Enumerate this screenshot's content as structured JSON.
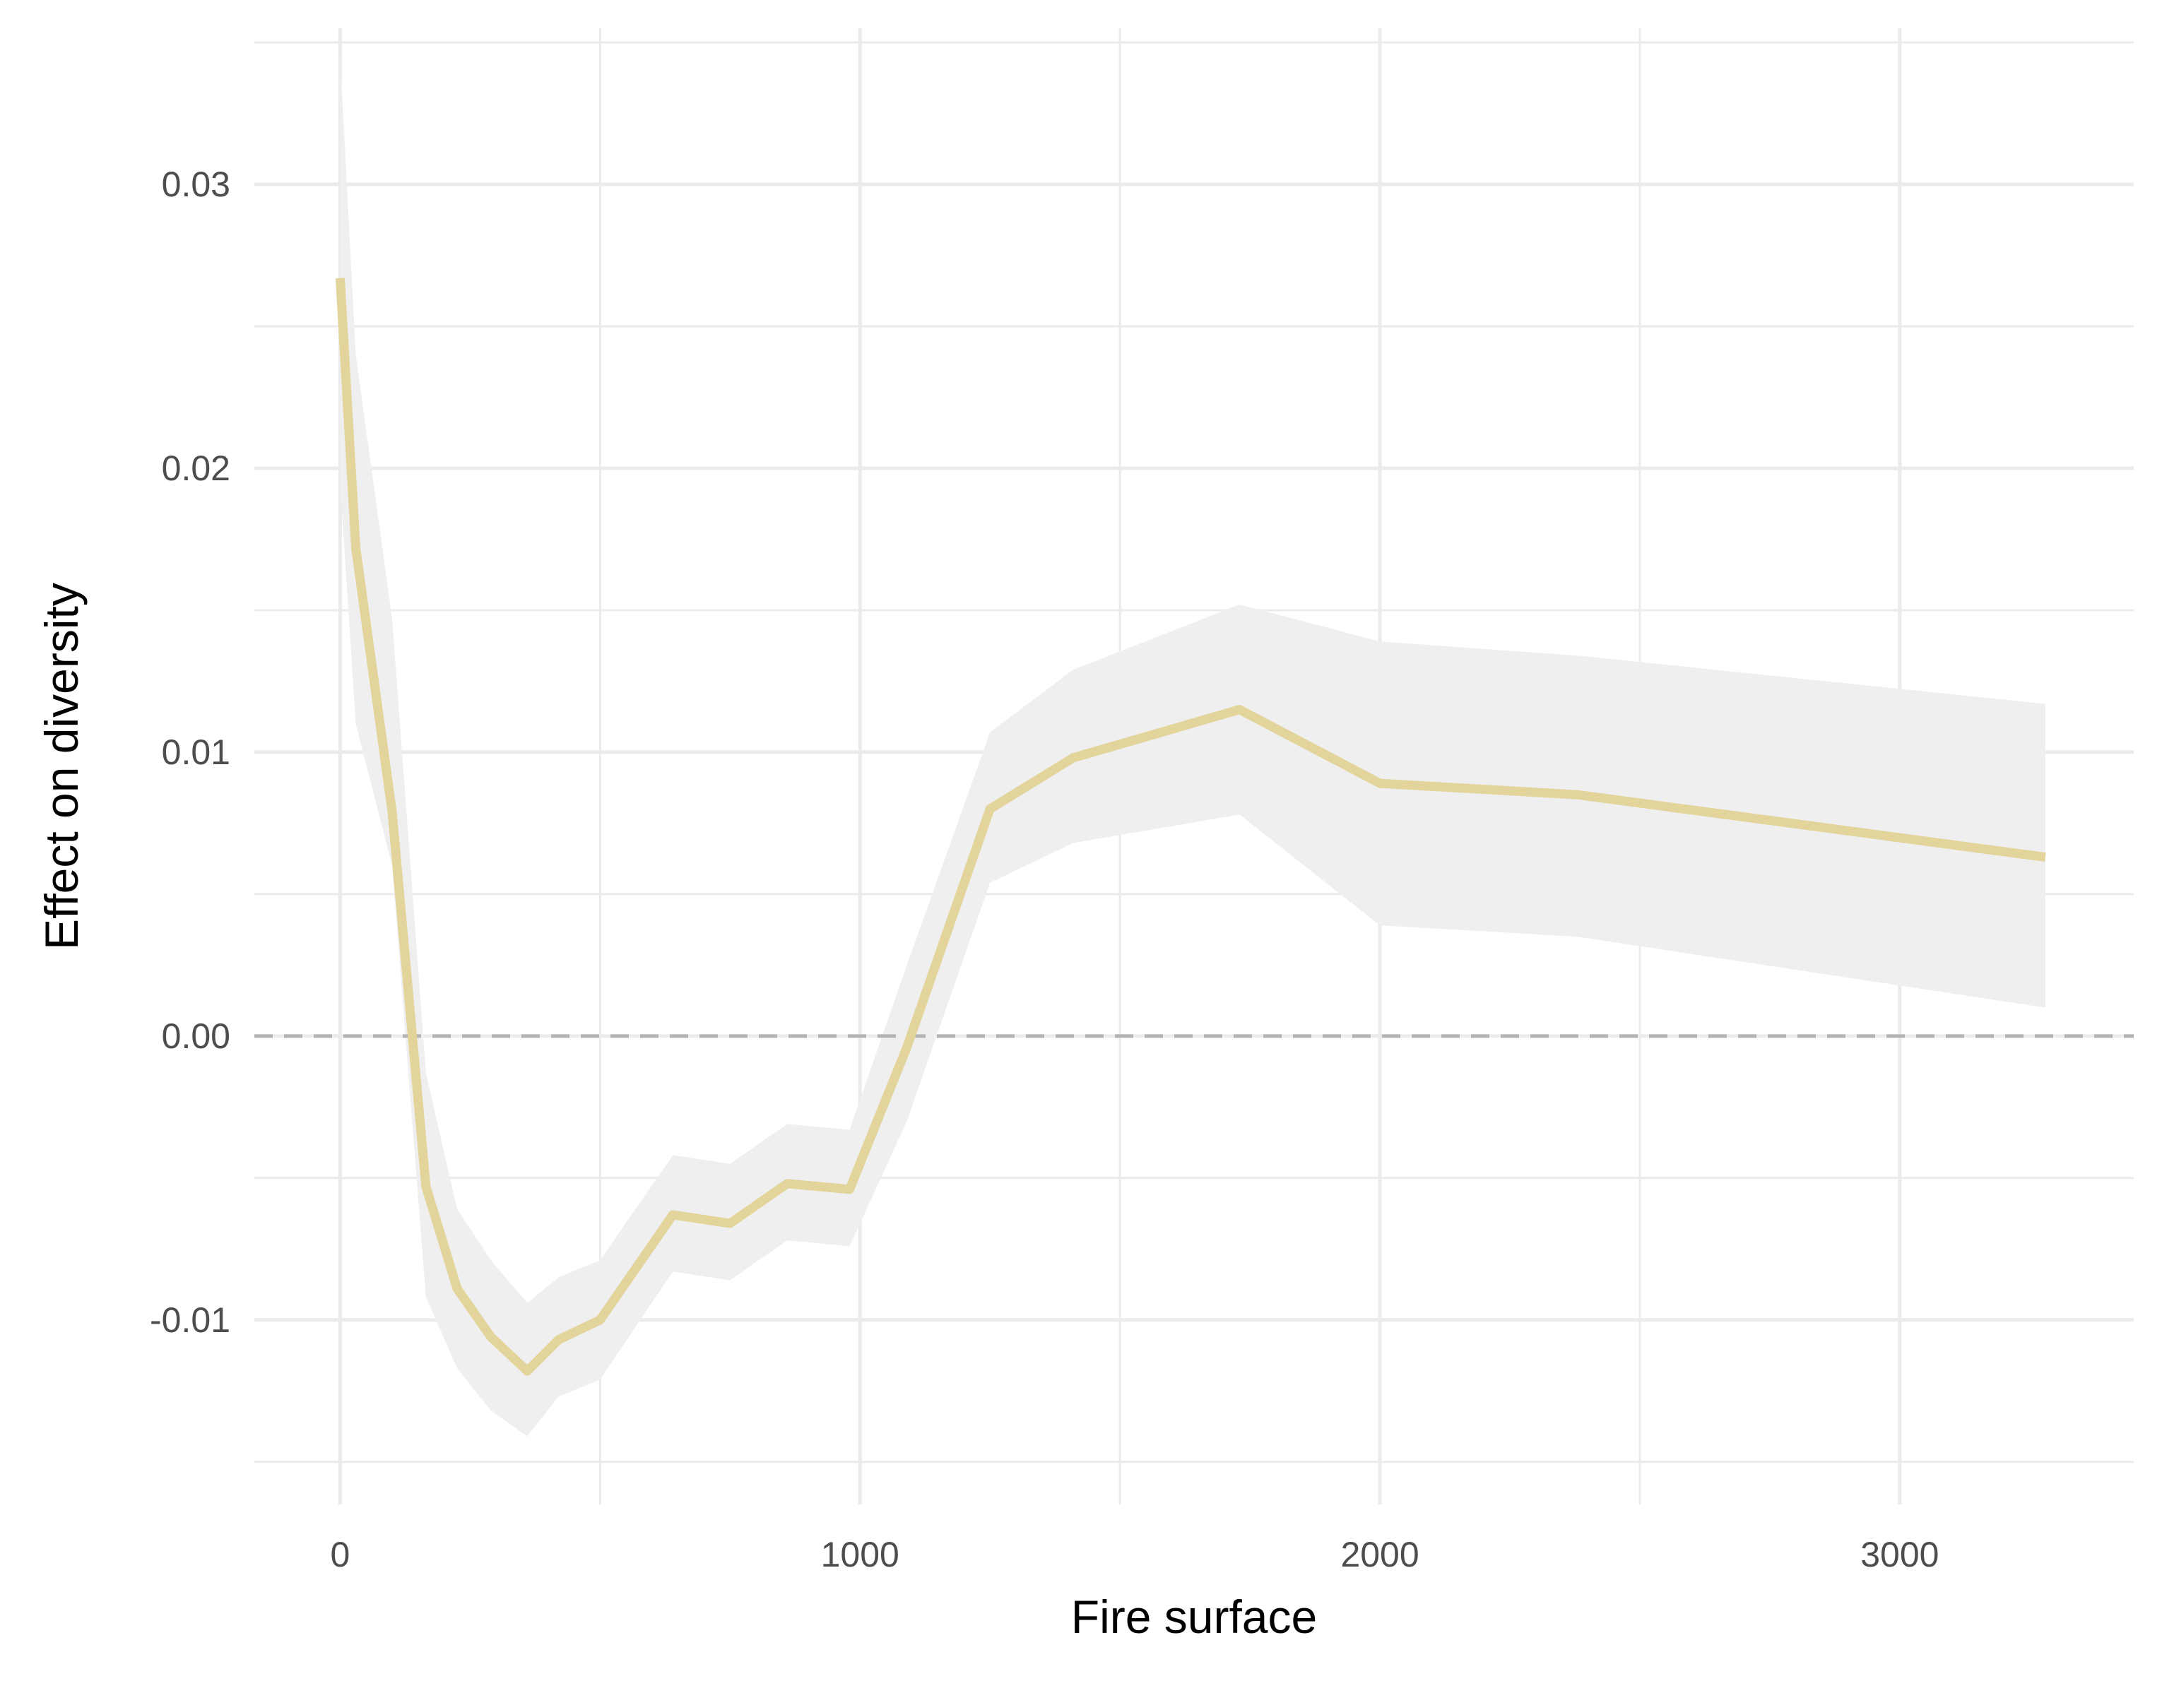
{
  "chart_data": {
    "type": "line",
    "title": "",
    "xlabel": "Fire surface",
    "ylabel": "Effect on diversity",
    "xlim": [
      -165,
      3450
    ],
    "ylim": [
      -0.0165,
      0.0355
    ],
    "x_ticks": [
      0,
      1000,
      2000,
      3000
    ],
    "x_tick_labels": [
      "0",
      "1000",
      "2000",
      "3000"
    ],
    "x_minor_ticks": [
      500,
      1500,
      2500
    ],
    "y_ticks": [
      -0.01,
      0.0,
      0.01,
      0.02,
      0.03
    ],
    "y_tick_labels": [
      "-0.01",
      "0.00",
      "0.01",
      "0.02",
      "0.03"
    ],
    "y_minor_ticks": [
      -0.015,
      -0.005,
      0.005,
      0.015,
      0.025,
      0.035
    ],
    "grid": true,
    "reference_line": {
      "y": 0,
      "style": "dashed",
      "color": "#b3b3b3"
    },
    "line_color": "#e2d49a",
    "band_color": "#efefef",
    "series": [
      {
        "x": [
          0,
          30,
          100,
          165,
          225,
          290,
          360,
          420,
          500,
          640,
          750,
          860,
          980,
          1090,
          1250,
          1410,
          1730,
          2000,
          2380,
          3280
        ],
        "y": [
          0.0267,
          0.0172,
          0.0079,
          -0.0053,
          -0.0089,
          -0.0106,
          -0.0118,
          -0.0107,
          -0.01,
          -0.0063,
          -0.0066,
          -0.0052,
          -0.0054,
          -0.0004,
          0.008,
          0.0098,
          0.0115,
          0.0089,
          0.0085,
          0.0063
        ],
        "lower": [
          0.0195,
          0.011,
          0.006,
          -0.0092,
          -0.0117,
          -0.0132,
          -0.0141,
          -0.0127,
          -0.0121,
          -0.0083,
          -0.0086,
          -0.0072,
          -0.0074,
          -0.003,
          0.0054,
          0.0068,
          0.0078,
          0.0039,
          0.0035,
          0.001
        ],
        "upper": [
          0.0345,
          0.024,
          0.0147,
          -0.0013,
          -0.0061,
          -0.0079,
          -0.0094,
          -0.0085,
          -0.0079,
          -0.0042,
          -0.0045,
          -0.0031,
          -0.0033,
          0.0025,
          0.0107,
          0.0129,
          0.0152,
          0.0139,
          0.0134,
          0.0117
        ]
      }
    ]
  }
}
